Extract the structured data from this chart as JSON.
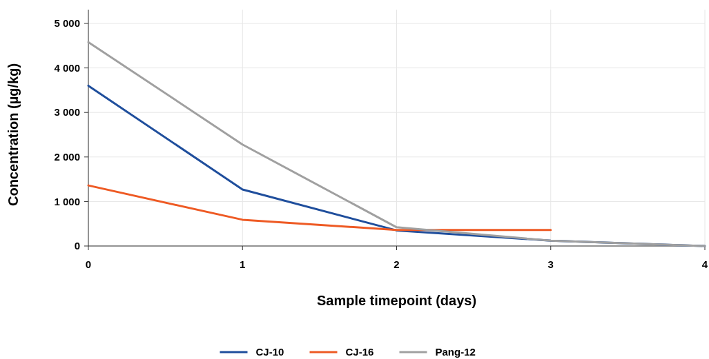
{
  "chart_data": {
    "type": "line",
    "xlabel": "Sample timepoint (days)",
    "ylabel": "Concentration (µg/kg)",
    "x": [
      0,
      1,
      2,
      3,
      4
    ],
    "series": [
      {
        "name": "CJ-10",
        "color": "#1f4e9c",
        "values": [
          3600,
          1270,
          350,
          120,
          0
        ]
      },
      {
        "name": "CJ-16",
        "color": "#ee5a24",
        "values": [
          1360,
          590,
          360,
          360,
          null
        ]
      },
      {
        "name": "Pang-12",
        "color": "#a0a0a0",
        "values": [
          4580,
          2280,
          420,
          120,
          0
        ]
      }
    ],
    "xlim": [
      0,
      4
    ],
    "xticks": [
      0,
      1,
      2,
      3,
      4
    ],
    "ylim": [
      0,
      5000
    ],
    "yticks": [
      0,
      {
        "value": 1000,
        "label": "1 000"
      },
      {
        "value": 2000,
        "label": "2 000"
      },
      {
        "value": 3000,
        "label": "3 000"
      },
      {
        "value": 4000,
        "label": "4 000"
      },
      {
        "value": 5000,
        "label": "5 000"
      }
    ],
    "grid": true,
    "legend": "bottom",
    "line_style": "solid",
    "marker": "none"
  }
}
